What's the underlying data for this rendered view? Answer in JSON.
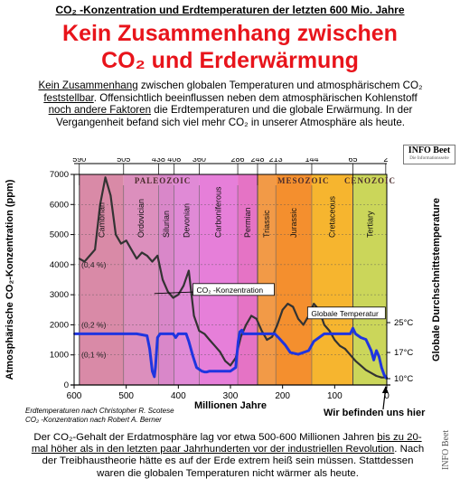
{
  "header": {
    "top_title": "CO₂ -Konzentration und Erdtemperaturen der letzten 600 Mio. Jahre",
    "headline_line1": "Kein Zusammenhang zwischen",
    "headline_line2": "CO₂ und Erderwärmung"
  },
  "intro": {
    "p1": "Kein Zusammenhang",
    "p2": " zwischen globalen Temperaturen und atmosphärischem CO₂ ",
    "p3": "feststellbar",
    "p4": ". Offensichtlich beeinflussen neben dem atmosphärischen Kohlenstoff ",
    "p5": "noch andere Faktoren",
    "p6": " die Erdtemperaturen und die globale Erwärmung. In der Vergangenheit befand sich viel mehr CO₂ in unserer Atmosphäre als heute."
  },
  "badge": {
    "name": "INFO Beet",
    "tagline": "Die Informationsseite"
  },
  "chart_data": {
    "type": "line",
    "xlabel": "Millionen Jahre",
    "ylabel_left": "Atmosphärische CO₂-Konzentration (ppm)",
    "ylabel_right": "Globale Durchschnittstemperature",
    "xlim": [
      600,
      0
    ],
    "ylim_left": [
      0,
      7000
    ],
    "x_ticks": [
      600,
      500,
      400,
      300,
      200,
      100,
      0
    ],
    "y_ticks_left": [
      0,
      1000,
      2000,
      3000,
      4000,
      5000,
      6000,
      7000
    ],
    "y_ticks_right": [
      "10°C",
      "17°C",
      "25°C"
    ],
    "top_ticks": [
      "590",
      "505",
      "438",
      "408",
      "360",
      "286",
      "248",
      "213",
      "144",
      "65",
      "2"
    ],
    "percent_labels": [
      "(0,4 %)",
      "(0,2 %)",
      "(0,1 %)"
    ],
    "eras": [
      {
        "name": "PALEOZOIC",
        "from": 590,
        "to": 248
      },
      {
        "name": "MESOZOIC",
        "from": 248,
        "to": 65
      },
      {
        "name": "CENOZOIC",
        "from": 65,
        "to": 0
      }
    ],
    "periods": [
      {
        "name": "Cambrian",
        "from": 590,
        "to": 505,
        "color": "#d98aa7"
      },
      {
        "name": "Ordovician",
        "from": 505,
        "to": 438,
        "color": "#dc8fbd"
      },
      {
        "name": "Silurian",
        "from": 438,
        "to": 408,
        "color": "#d987c9"
      },
      {
        "name": "Devonian",
        "from": 408,
        "to": 360,
        "color": "#e08ad6"
      },
      {
        "name": "Carboniferous",
        "from": 360,
        "to": 286,
        "color": "#e67fd9"
      },
      {
        "name": "Permian",
        "from": 286,
        "to": 248,
        "color": "#e573c5"
      },
      {
        "name": "Triassic",
        "from": 248,
        "to": 213,
        "color": "#f29a47"
      },
      {
        "name": "Jurassic",
        "from": 213,
        "to": 144,
        "color": "#f48f2e"
      },
      {
        "name": "Cretaceous",
        "from": 144,
        "to": 65,
        "color": "#f6b52f"
      },
      {
        "name": "Tertiary",
        "from": 65,
        "to": 0,
        "color": "#cbd65a"
      }
    ],
    "series": [
      {
        "name": "CO₂ -Konzentration",
        "color": "#333333",
        "x": [
          590,
          580,
          570,
          560,
          550,
          540,
          530,
          520,
          510,
          500,
          490,
          480,
          470,
          460,
          450,
          440,
          430,
          420,
          410,
          400,
          390,
          380,
          370,
          360,
          350,
          340,
          330,
          320,
          310,
          300,
          290,
          280,
          270,
          260,
          250,
          240,
          230,
          220,
          210,
          200,
          190,
          180,
          170,
          160,
          150,
          140,
          130,
          120,
          110,
          100,
          90,
          80,
          70,
          60,
          50,
          40,
          30,
          20,
          10,
          0
        ],
        "values": [
          4200,
          4100,
          4300,
          4500,
          6000,
          6900,
          6300,
          5000,
          4700,
          4800,
          4500,
          4200,
          4400,
          4300,
          4100,
          4300,
          3500,
          3100,
          2900,
          3000,
          3300,
          3800,
          2300,
          1800,
          1700,
          1500,
          1300,
          1100,
          800,
          650,
          900,
          1600,
          2000,
          2300,
          2200,
          1800,
          1500,
          1600,
          2000,
          2500,
          2700,
          2600,
          2200,
          2000,
          2300,
          2700,
          2500,
          2000,
          1800,
          1500,
          1300,
          1200,
          1000,
          800,
          650,
          500,
          400,
          300,
          250,
          250
        ]
      },
      {
        "name": "Globale Temperatur",
        "color": "#1f35e0",
        "x": [
          600,
          560,
          520,
          480,
          460,
          455,
          450,
          446,
          444,
          440,
          435,
          425,
          420,
          410,
          405,
          400,
          385,
          380,
          372,
          365,
          360,
          355,
          350,
          345,
          340,
          330,
          310,
          300,
          290,
          285,
          282,
          278,
          275,
          270,
          260,
          250,
          240,
          230,
          215,
          208,
          195,
          185,
          170,
          150,
          140,
          120,
          100,
          80,
          70,
          65,
          60,
          50,
          40,
          35,
          30,
          25,
          20,
          15,
          10,
          5,
          0
        ],
        "values": [
          22,
          22,
          22,
          22,
          21.5,
          18,
          12,
          10.5,
          13,
          21,
          22,
          22,
          22,
          22,
          21,
          22,
          22,
          20,
          16,
          13,
          12.5,
          12,
          11.8,
          11.8,
          12,
          12,
          12,
          12,
          13,
          20,
          22.5,
          23,
          22,
          22,
          22,
          22,
          22,
          22,
          22,
          21,
          19,
          17,
          16.5,
          17.5,
          20,
          22,
          22,
          22,
          22,
          23.5,
          22,
          21,
          20.5,
          19,
          17.5,
          15,
          17.5,
          16,
          13,
          11,
          10
        ]
      }
    ]
  },
  "footer": {
    "credit1": "Erdtemperaturen nach Christopher R. Scotese",
    "credit2": "CO₂ -Konzentration nach Robert A. Berner",
    "here_label": "Wir befinden uns hier",
    "b1": "Der CO₂-Gehalt der Erdatmosphäre lag vor etwa 500-600 Millionen Jahren ",
    "b2": "bis zu 20-mal höher als in den letzten paar Jahrhunderten vor der industriellen Revolution",
    "b3": ". Nach der Treibhaustheorie hätte es auf der Erde extrem heiß sein müssen. Stattdessen waren die globalen Temperaturen nicht wärmer als heute.",
    "vertical_mark": "INFO Beet"
  }
}
